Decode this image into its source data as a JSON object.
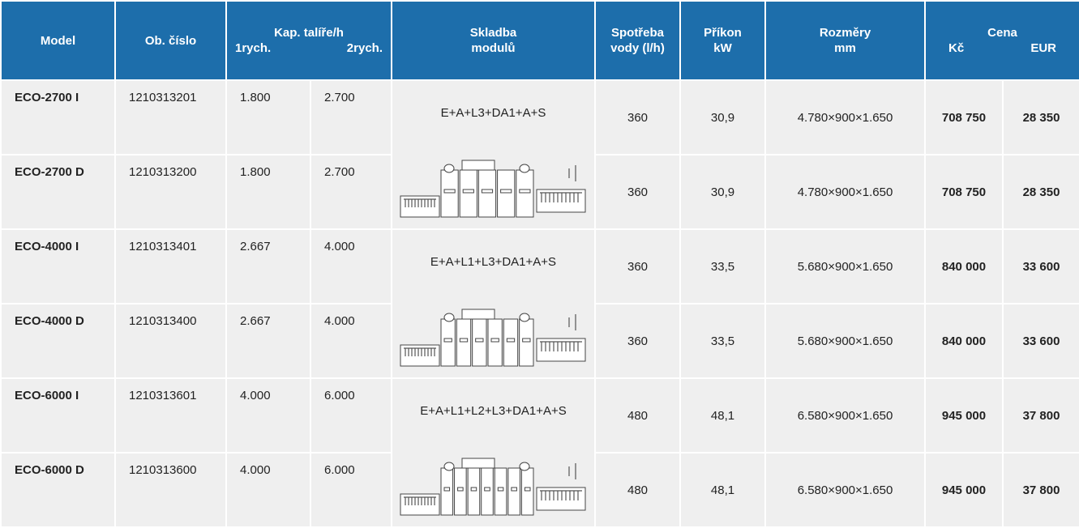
{
  "header": {
    "model": "Model",
    "number": "Ob. číslo",
    "capacity": {
      "title": "Kap. talíře/h",
      "speed1": "1rych.",
      "speed2": "2rych."
    },
    "composition": [
      "Skladba",
      "modulů"
    ],
    "water": [
      "Spotřeba",
      "vody (l/h)"
    ],
    "power": [
      "Příkon",
      "kW"
    ],
    "dimensions": [
      "Rozměry",
      "mm"
    ],
    "price": {
      "title": "Cena",
      "czk": "Kč",
      "eur": "EUR"
    }
  },
  "rows": [
    {
      "model": "ECO-2700 I",
      "number": "1210313201",
      "cap1": "1.800",
      "cap2": "2.700",
      "water": "360",
      "power": "30,9",
      "dimensions": "4.780×900×1.650",
      "czk": "708 750",
      "eur": "28 350"
    },
    {
      "model": "ECO-2700 D",
      "number": "1210313200",
      "cap1": "1.800",
      "cap2": "2.700",
      "water": "360",
      "power": "30,9",
      "dimensions": "4.780×900×1.650",
      "czk": "708 750",
      "eur": "28 350"
    },
    {
      "model": "ECO-4000 I",
      "number": "1210313401",
      "cap1": "2.667",
      "cap2": "4.000",
      "water": "360",
      "power": "33,5",
      "dimensions": "5.680×900×1.650",
      "czk": "840 000",
      "eur": "33 600"
    },
    {
      "model": "ECO-4000 D",
      "number": "1210313400",
      "cap1": "2.667",
      "cap2": "4.000",
      "water": "360",
      "power": "33,5",
      "dimensions": "5.680×900×1.650",
      "czk": "840 000",
      "eur": "33 600"
    },
    {
      "model": "ECO-6000 I",
      "number": "1210313601",
      "cap1": "4.000",
      "cap2": "6.000",
      "water": "480",
      "power": "48,1",
      "dimensions": "6.580×900×1.650",
      "czk": "945 000",
      "eur": "37 800"
    },
    {
      "model": "ECO-6000 D",
      "number": "1210313600",
      "cap1": "4.000",
      "cap2": "6.000",
      "water": "480",
      "power": "48,1",
      "dimensions": "6.580×900×1.650",
      "czk": "945 000",
      "eur": "37 800"
    }
  ],
  "compositions": [
    "E+A+L3+DA1+A+S",
    "E+A+L1+L3+DA1+A+S",
    "E+A+L1+L2+L3+DA1+A+S"
  ]
}
